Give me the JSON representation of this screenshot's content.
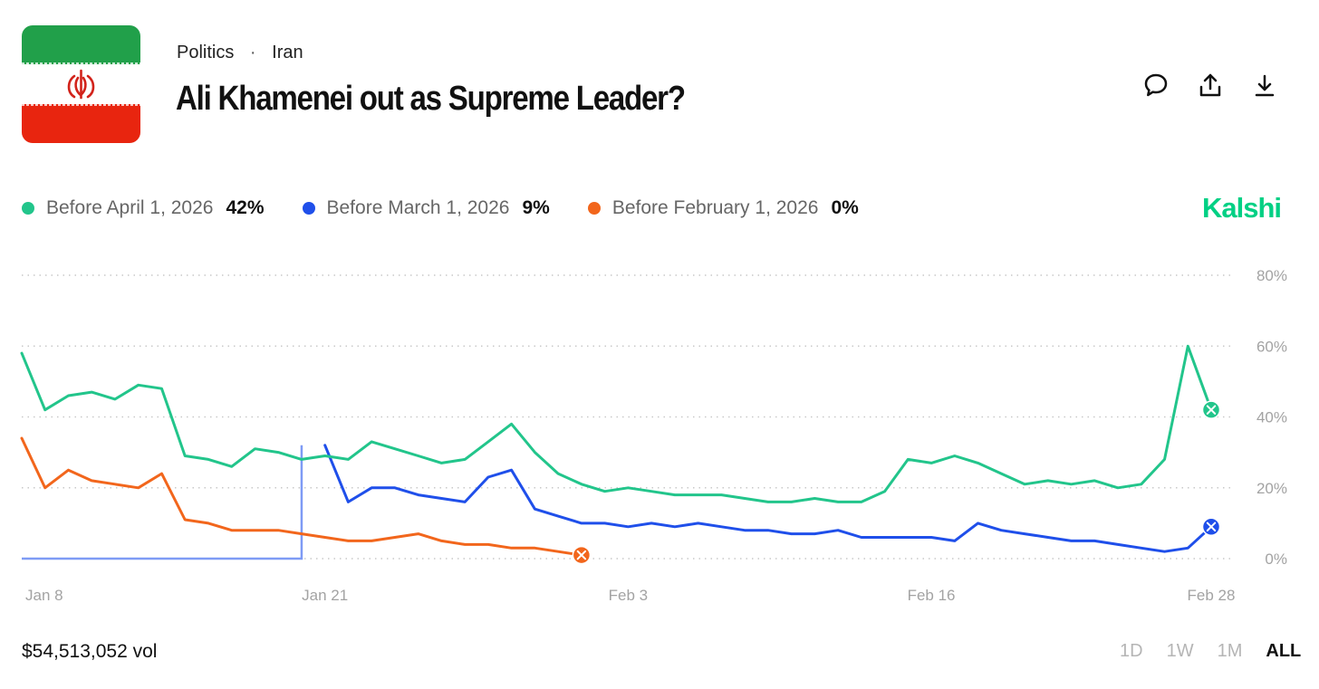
{
  "header": {
    "category": "Politics",
    "subcategory": "Iran",
    "separator": "·",
    "title": "Ali Khamenei out as Supreme Leader?",
    "flag_icon": "iran-flag-icon",
    "actions": [
      {
        "name": "comment-button",
        "icon": "speech-bubble-icon"
      },
      {
        "name": "share-button",
        "icon": "upload-icon"
      },
      {
        "name": "download-button",
        "icon": "download-icon"
      }
    ]
  },
  "brand": {
    "name": "Kalshi",
    "color": "#00D084"
  },
  "legend": [
    {
      "label": "Before April 1, 2026",
      "value": "42%",
      "color": "#22C58B"
    },
    {
      "label": "Before March 1, 2026",
      "value": "9%",
      "color": "#1F4FEA"
    },
    {
      "label": "Before February 1, 2026",
      "value": "0%",
      "color": "#F2661C"
    }
  ],
  "footer": {
    "volume": "$54,513,052 vol",
    "ranges": [
      "1D",
      "1W",
      "1M",
      "ALL"
    ],
    "active_range": "ALL"
  },
  "chart_data": {
    "type": "line",
    "x_tick_labels": [
      "Jan 8",
      "Jan 21",
      "Feb 3",
      "Feb 16",
      "Feb 28"
    ],
    "y_tick_labels": [
      "0%",
      "20%",
      "40%",
      "60%",
      "80%"
    ],
    "ylim": [
      0,
      80
    ],
    "grid": true,
    "legend_position": "top-left",
    "series": [
      {
        "name": "Before April 1, 2026",
        "color": "#22C58B",
        "end_marker": "x",
        "x": [
          "2026-01-08",
          "2026-01-09",
          "2026-01-10",
          "2026-01-11",
          "2026-01-12",
          "2026-01-13",
          "2026-01-14",
          "2026-01-15",
          "2026-01-16",
          "2026-01-17",
          "2026-01-18",
          "2026-01-19",
          "2026-01-20",
          "2026-01-21",
          "2026-01-22",
          "2026-01-23",
          "2026-01-24",
          "2026-01-25",
          "2026-01-26",
          "2026-01-27",
          "2026-01-28",
          "2026-01-29",
          "2026-01-30",
          "2026-01-31",
          "2026-02-01",
          "2026-02-02",
          "2026-02-03",
          "2026-02-04",
          "2026-02-05",
          "2026-02-06",
          "2026-02-07",
          "2026-02-08",
          "2026-02-09",
          "2026-02-10",
          "2026-02-11",
          "2026-02-12",
          "2026-02-13",
          "2026-02-14",
          "2026-02-15",
          "2026-02-16",
          "2026-02-17",
          "2026-02-18",
          "2026-02-19",
          "2026-02-20",
          "2026-02-21",
          "2026-02-22",
          "2026-02-23",
          "2026-02-24",
          "2026-02-25",
          "2026-02-26",
          "2026-02-27",
          "2026-02-28"
        ],
        "values": [
          58,
          42,
          46,
          47,
          45,
          49,
          48,
          29,
          28,
          26,
          31,
          30,
          28,
          29,
          28,
          33,
          31,
          29,
          27,
          28,
          33,
          38,
          30,
          24,
          21,
          19,
          20,
          19,
          18,
          18,
          18,
          17,
          16,
          16,
          17,
          16,
          16,
          19,
          28,
          27,
          29,
          27,
          24,
          21,
          22,
          21,
          22,
          20,
          21,
          28,
          60,
          42
        ]
      },
      {
        "name": "Before March 1, 2026",
        "color": "#1F4FEA",
        "end_marker": "x",
        "x": [
          "2026-01-08",
          "2026-01-20",
          "2026-01-21",
          "2026-01-22",
          "2026-01-23",
          "2026-01-24",
          "2026-01-25",
          "2026-01-26",
          "2026-01-27",
          "2026-01-28",
          "2026-01-29",
          "2026-01-30",
          "2026-01-31",
          "2026-02-01",
          "2026-02-02",
          "2026-02-03",
          "2026-02-04",
          "2026-02-05",
          "2026-02-06",
          "2026-02-07",
          "2026-02-08",
          "2026-02-09",
          "2026-02-10",
          "2026-02-11",
          "2026-02-12",
          "2026-02-13",
          "2026-02-14",
          "2026-02-15",
          "2026-02-16",
          "2026-02-17",
          "2026-02-18",
          "2026-02-19",
          "2026-02-20",
          "2026-02-21",
          "2026-02-22",
          "2026-02-23",
          "2026-02-24",
          "2026-02-25",
          "2026-02-26",
          "2026-02-27",
          "2026-02-28"
        ],
        "values": [
          0,
          0,
          32,
          16,
          20,
          20,
          18,
          17,
          16,
          23,
          25,
          14,
          12,
          10,
          10,
          9,
          10,
          9,
          10,
          9,
          8,
          8,
          7,
          7,
          8,
          6,
          6,
          6,
          6,
          5,
          10,
          8,
          7,
          6,
          5,
          5,
          4,
          3,
          2,
          3,
          9
        ]
      },
      {
        "name": "Before February 1, 2026",
        "color": "#F2661C",
        "end_marker": "x",
        "x": [
          "2026-01-08",
          "2026-01-09",
          "2026-01-10",
          "2026-01-11",
          "2026-01-12",
          "2026-01-13",
          "2026-01-14",
          "2026-01-15",
          "2026-01-16",
          "2026-01-17",
          "2026-01-18",
          "2026-01-19",
          "2026-01-20",
          "2026-01-21",
          "2026-01-22",
          "2026-01-23",
          "2026-01-24",
          "2026-01-25",
          "2026-01-26",
          "2026-01-27",
          "2026-01-28",
          "2026-01-29",
          "2026-01-30",
          "2026-01-31",
          "2026-02-01"
        ],
        "values": [
          34,
          20,
          25,
          22,
          21,
          20,
          24,
          11,
          10,
          8,
          8,
          8,
          7,
          6,
          5,
          5,
          6,
          7,
          5,
          4,
          4,
          3,
          3,
          2,
          1
        ]
      }
    ]
  }
}
